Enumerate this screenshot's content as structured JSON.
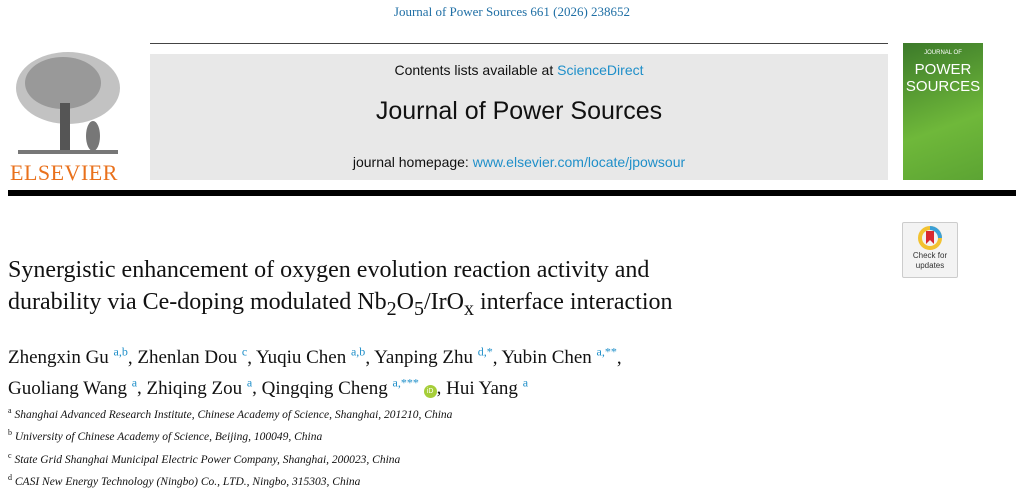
{
  "citation": "Journal of Power Sources 661 (2026) 238652",
  "publisher_logo": "ELSEVIER",
  "banner": {
    "contents_prefix": "Contents lists available at ",
    "contents_link": "ScienceDirect",
    "journal_name": "Journal of Power Sources",
    "homepage_prefix": "journal homepage: ",
    "homepage_link": "www.elsevier.com/locate/jpowsour"
  },
  "cover": {
    "line1": "JOURNAL OF",
    "line2": "POWER",
    "line3": "SOURCES"
  },
  "check_updates": {
    "line1": "Check for",
    "line2": "updates"
  },
  "title": {
    "part1": "Synergistic enhancement of oxygen evolution reaction activity and",
    "part2": "durability via Ce-doping modulated Nb",
    "sub1": "2",
    "mid": "O",
    "sub2": "5",
    "mid2": "/IrO",
    "sub3": "x",
    "part3": " interface interaction"
  },
  "authors": [
    {
      "name": "Zhengxin Gu",
      "sup": "a,b",
      "sep": ", "
    },
    {
      "name": "Zhenlan Dou",
      "sup": "c",
      "sep": ", "
    },
    {
      "name": "Yuqiu Chen",
      "sup": "a,b",
      "sep": ", "
    },
    {
      "name": "Yanping Zhu",
      "sup": "d,*",
      "sep": ", "
    },
    {
      "name": "Yubin Chen",
      "sup": "a,**",
      "sep": ","
    },
    {
      "name": "Guoliang Wang",
      "sup": "a",
      "sep": ", "
    },
    {
      "name": "Zhiqing Zou",
      "sup": "a",
      "sep": ", "
    },
    {
      "name": "Qingqing Cheng",
      "sup": "a,***",
      "sep": ""
    },
    {
      "name": "Hui Yang",
      "sup": "a",
      "sep": ""
    }
  ],
  "orcid_label": "iD",
  "affiliations": [
    {
      "key": "a",
      "text": "Shanghai Advanced Research Institute, Chinese Academy of Science, Shanghai, 201210, China"
    },
    {
      "key": "b",
      "text": "University of Chinese Academy of Science, Beijing, 100049, China"
    },
    {
      "key": "c",
      "text": "State Grid Shanghai Municipal Electric Power Company, Shanghai, 200023, China"
    },
    {
      "key": "d",
      "text": "CASI New Energy Technology (Ningbo) Co., LTD., Ningbo, 315303, China"
    }
  ]
}
